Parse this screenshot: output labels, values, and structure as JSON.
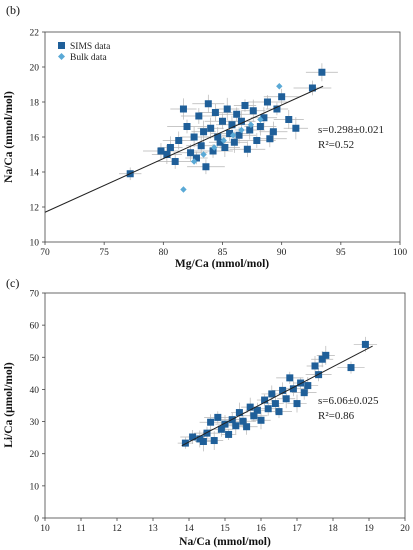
{
  "chart_data": [
    {
      "panel_label": "(b)",
      "type": "scatter",
      "xlabel": "Mg/Ca (mmol/mol)",
      "ylabel": "Na/Ca (mmol/mol)",
      "xlim": [
        70,
        100
      ],
      "ylim": [
        10,
        22
      ],
      "xticks": [
        70,
        75,
        80,
        85,
        90,
        95,
        100
      ],
      "yticks": [
        10,
        12,
        14,
        16,
        18,
        20,
        22
      ],
      "legend_position": "top-left",
      "annotation": {
        "slope": "s=0.298±0.021",
        "r2": "R²=0.52"
      },
      "trendline": {
        "x": [
          70,
          93.5
        ],
        "y": [
          11.7,
          18.9
        ]
      },
      "series": [
        {
          "name": "SIMS data",
          "marker": "square",
          "color": "#1f5f99",
          "points": [
            [
              77.2,
              13.9
            ],
            [
              79.8,
              15.2
            ],
            [
              80.3,
              15.0
            ],
            [
              80.6,
              15.4
            ],
            [
              81.0,
              14.6
            ],
            [
              81.3,
              15.8
            ],
            [
              81.7,
              17.6
            ],
            [
              82.0,
              16.6
            ],
            [
              82.3,
              15.1
            ],
            [
              82.6,
              16.0
            ],
            [
              82.8,
              14.8
            ],
            [
              83.0,
              17.2
            ],
            [
              83.2,
              15.5
            ],
            [
              83.4,
              16.3
            ],
            [
              83.6,
              14.3
            ],
            [
              83.8,
              17.9
            ],
            [
              84.0,
              16.5
            ],
            [
              84.2,
              15.2
            ],
            [
              84.4,
              17.4
            ],
            [
              84.6,
              16.0
            ],
            [
              84.8,
              15.7
            ],
            [
              85.0,
              16.9
            ],
            [
              85.2,
              15.4
            ],
            [
              85.4,
              17.6
            ],
            [
              85.6,
              16.2
            ],
            [
              85.8,
              16.7
            ],
            [
              86.0,
              15.7
            ],
            [
              86.2,
              17.3
            ],
            [
              86.4,
              16.1
            ],
            [
              86.6,
              16.9
            ],
            [
              86.9,
              17.8
            ],
            [
              87.1,
              15.3
            ],
            [
              87.3,
              16.4
            ],
            [
              87.6,
              17.5
            ],
            [
              87.9,
              15.8
            ],
            [
              88.2,
              16.6
            ],
            [
              88.5,
              17.1
            ],
            [
              88.8,
              18.0
            ],
            [
              89.0,
              15.9
            ],
            [
              89.3,
              16.3
            ],
            [
              89.6,
              17.6
            ],
            [
              90.0,
              18.3
            ],
            [
              90.6,
              17.0
            ],
            [
              91.2,
              16.5
            ],
            [
              92.6,
              18.8
            ],
            [
              93.4,
              19.7
            ]
          ]
        },
        {
          "name": "Bulk data",
          "marker": "diamond",
          "color": "#5aa9d6",
          "points": [
            [
              81.7,
              13.0
            ],
            [
              82.6,
              14.6
            ],
            [
              83.4,
              15.0
            ],
            [
              84.3,
              15.4
            ],
            [
              85.1,
              15.8
            ],
            [
              85.9,
              16.1
            ],
            [
              86.6,
              16.4
            ],
            [
              87.4,
              16.7
            ],
            [
              88.2,
              17.0
            ],
            [
              89.8,
              18.9
            ]
          ]
        }
      ]
    },
    {
      "panel_label": "(c)",
      "type": "scatter",
      "xlabel": "Na/Ca (mmol/mol)",
      "ylabel": "Li/Ca (µmol/mol)",
      "xlim": [
        10,
        20
      ],
      "ylim": [
        0,
        70
      ],
      "xticks": [
        10,
        11,
        12,
        13,
        14,
        15,
        16,
        17,
        18,
        19,
        20
      ],
      "yticks": [
        0,
        10,
        20,
        30,
        40,
        50,
        60,
        70
      ],
      "annotation": {
        "slope": "s=6.06±0.025",
        "r2": "R²=0.86"
      },
      "trendline": {
        "x": [
          13.8,
          19.1
        ],
        "y": [
          22.5,
          53.5
        ]
      },
      "series": [
        {
          "name": "",
          "marker": "square",
          "color": "#1f5f99",
          "points": [
            [
              13.9,
              23.3
            ],
            [
              14.1,
              25.2
            ],
            [
              14.3,
              24.6
            ],
            [
              14.4,
              23.8
            ],
            [
              14.5,
              26.4
            ],
            [
              14.6,
              29.8
            ],
            [
              14.7,
              24.1
            ],
            [
              14.8,
              31.3
            ],
            [
              14.9,
              27.6
            ],
            [
              15.0,
              29.2
            ],
            [
              15.1,
              26.0
            ],
            [
              15.2,
              30.6
            ],
            [
              15.3,
              28.7
            ],
            [
              15.4,
              32.8
            ],
            [
              15.5,
              30.1
            ],
            [
              15.6,
              28.4
            ],
            [
              15.7,
              34.5
            ],
            [
              15.8,
              31.8
            ],
            [
              15.9,
              33.5
            ],
            [
              16.0,
              30.4
            ],
            [
              16.1,
              36.7
            ],
            [
              16.2,
              34.0
            ],
            [
              16.3,
              38.6
            ],
            [
              16.4,
              35.6
            ],
            [
              16.5,
              33.1
            ],
            [
              16.6,
              39.7
            ],
            [
              16.7,
              37.1
            ],
            [
              16.8,
              43.6
            ],
            [
              16.9,
              40.2
            ],
            [
              17.0,
              35.6
            ],
            [
              17.1,
              42.0
            ],
            [
              17.2,
              39.0
            ],
            [
              17.3,
              41.2
            ],
            [
              17.5,
              47.3
            ],
            [
              17.6,
              44.6
            ],
            [
              17.7,
              49.4
            ],
            [
              17.8,
              50.6
            ],
            [
              18.5,
              46.8
            ],
            [
              18.9,
              54.0
            ]
          ]
        }
      ]
    }
  ]
}
